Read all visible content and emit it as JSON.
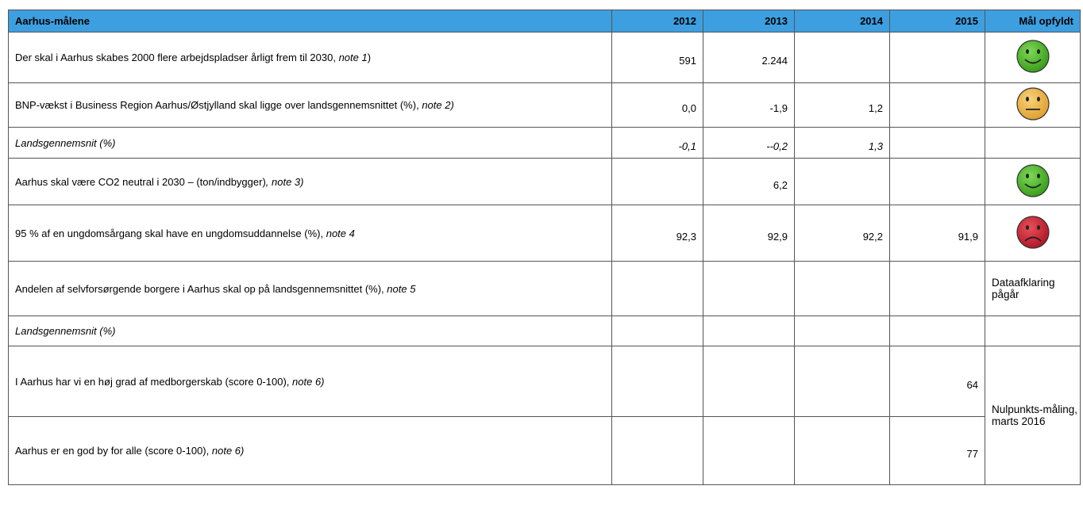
{
  "table": {
    "header": [
      "Aarhus-målene",
      "2012",
      "2013",
      "2014",
      "2015",
      "Mål opfyldt"
    ],
    "rows": [
      {
        "label": "Der skal i Aarhus skabes 2000 flere arbejdspladser årligt frem til 2030,",
        "note": "note 1",
        "after": ")",
        "values": [
          "591",
          "2.244",
          null,
          null
        ],
        "status": "green"
      },
      {
        "label": "BNP-vækst i Business Region Aarhus/Østjylland skal ligge over landsgennemsnittet (%),",
        "note": "note 2)",
        "values": [
          "0,0",
          "-1,9",
          "1,2",
          null
        ],
        "status": "yellow"
      },
      {
        "label": "Landsgennemsnit (%)",
        "italic": true,
        "values": [
          "-0,1",
          "--0,2",
          "1,3",
          null
        ]
      },
      {
        "label": "Aarhus skal være CO2 neutral i 2030 – (ton/indbygger)",
        "note": ", note 3)",
        "values": [
          null,
          "6,2",
          null,
          null
        ],
        "status": "green"
      },
      {
        "label": "95 % af en ungdomsårgang skal have en ungdomsuddannelse (%),",
        "note": "note 4",
        "values": [
          "92,3",
          "92,9",
          "92,2",
          "91,9"
        ],
        "status": "red"
      },
      {
        "label": "Andelen af selvforsørgende borgere i Aarhus skal op på landsgennemsnittet (%),",
        "note": "note 5",
        "values": [
          null,
          null,
          null,
          null
        ],
        "status_text": "Dataafklaring pågår"
      },
      {
        "label": "Landsgennemsnit (%)",
        "italic": true,
        "values": [
          null,
          null,
          null,
          null
        ]
      },
      {
        "label": "I Aarhus har vi en høj grad af medborgerskab (score 0-100),",
        "note": "note 6)",
        "values": [
          null,
          null,
          null,
          "64"
        ],
        "status_text": "Nulpunkts-måling, marts 2016",
        "status_rowspan": 2
      },
      {
        "label": "Aarhus er en god by for alle (score 0-100),",
        "note": "note 6)",
        "values": [
          null,
          null,
          null,
          "77"
        ],
        "status_skip": true
      }
    ]
  }
}
